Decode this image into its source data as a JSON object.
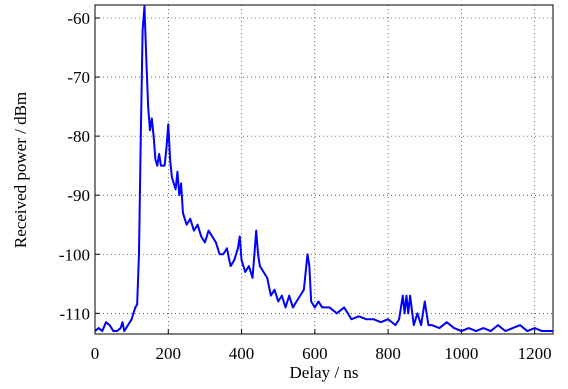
{
  "chart_data": {
    "type": "line",
    "xlabel": "Delay / ns",
    "ylabel": "Received power / dBm",
    "x": [
      0,
      10,
      20,
      30,
      40,
      50,
      60,
      70,
      75,
      80,
      90,
      100,
      110,
      115,
      120,
      125,
      130,
      135,
      140,
      145,
      150,
      155,
      160,
      165,
      170,
      175,
      180,
      190,
      195,
      200,
      205,
      210,
      220,
      225,
      230,
      235,
      240,
      250,
      260,
      270,
      280,
      290,
      300,
      310,
      320,
      330,
      340,
      350,
      360,
      370,
      380,
      390,
      395,
      400,
      410,
      420,
      430,
      440,
      445,
      450,
      460,
      470,
      480,
      490,
      500,
      510,
      520,
      530,
      540,
      550,
      560,
      570,
      580,
      585,
      590,
      600,
      610,
      620,
      640,
      660,
      680,
      700,
      720,
      740,
      760,
      780,
      800,
      820,
      830,
      840,
      845,
      850,
      855,
      860,
      870,
      880,
      890,
      900,
      910,
      920,
      940,
      960,
      980,
      1000,
      1020,
      1040,
      1060,
      1080,
      1100,
      1120,
      1140,
      1160,
      1180,
      1200,
      1220,
      1240,
      1250
    ],
    "series": [
      {
        "name": "Received power",
        "color": "#0000ff",
        "values": [
          -113,
          -112.5,
          -113,
          -111.5,
          -112,
          -113,
          -113,
          -112.5,
          -111.5,
          -113,
          -112,
          -111,
          -109,
          -108.5,
          -100,
          -80,
          -62,
          -58,
          -67,
          -75,
          -79,
          -77,
          -80,
          -84,
          -85,
          -83,
          -85,
          -85,
          -82,
          -78,
          -84,
          -87,
          -89,
          -86,
          -90,
          -88,
          -93,
          -95,
          -94,
          -96,
          -95,
          -97,
          -98,
          -96,
          -97,
          -98,
          -100,
          -100,
          -99,
          -102,
          -101,
          -99,
          -97,
          -101,
          -103,
          -102,
          -104,
          -96,
          -100,
          -102,
          -103,
          -104,
          -107,
          -106,
          -108,
          -107,
          -109,
          -107,
          -109,
          -108,
          -107,
          -106,
          -100,
          -102,
          -108,
          -109,
          -108,
          -109,
          -109,
          -110,
          -109,
          -111,
          -110.5,
          -111,
          -111,
          -111.5,
          -111,
          -112,
          -111,
          -107,
          -110,
          -107,
          -110,
          -107,
          -112,
          -110,
          -112,
          -108,
          -112,
          -112,
          -112.5,
          -111.5,
          -112.5,
          -113,
          -112.5,
          -113,
          -112.5,
          -113,
          -112,
          -113,
          -112.5,
          -112,
          -113,
          -112.5,
          -113,
          -113,
          -113
        ]
      }
    ],
    "xlim": [
      0,
      1250
    ],
    "xticks": [
      0,
      200,
      400,
      600,
      800,
      1000,
      1200
    ],
    "ylim": [
      -113.5,
      -57.8
    ],
    "yticks": [
      -110,
      -100,
      -90,
      -80,
      -70,
      -60
    ],
    "grid": true
  }
}
